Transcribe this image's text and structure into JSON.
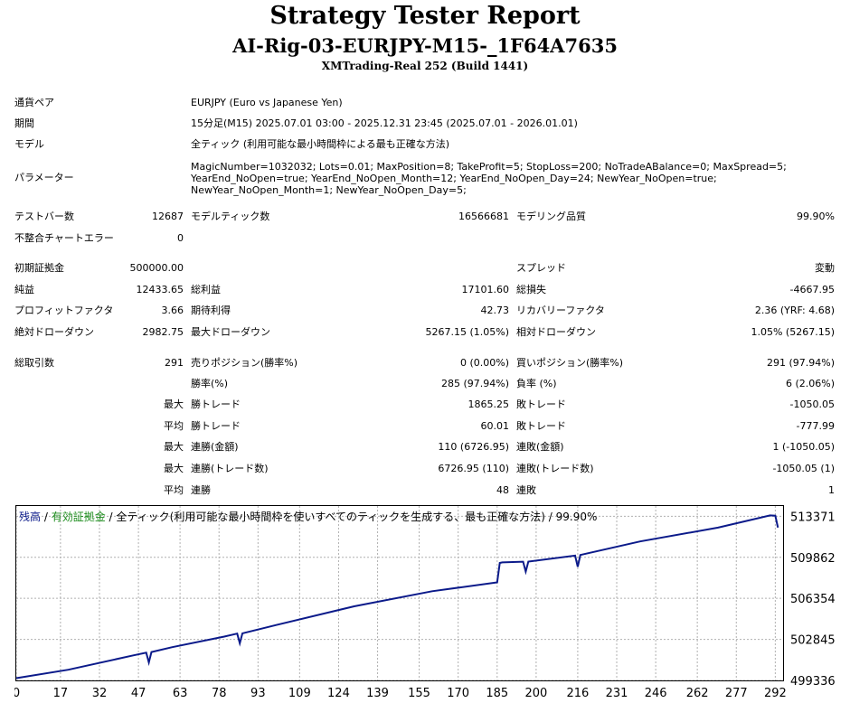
{
  "header": {
    "title": "Strategy Tester Report",
    "subtitle": "AI-Rig-03-EURJPY-M15-_1F64A7635",
    "server": "XMTrading-Real 252 (Build 1441)"
  },
  "settings": {
    "symbol_label": "通貨ペア",
    "symbol": "EURJPY (Euro vs Japanese Yen)",
    "period_label": "期間",
    "period": "15分足(M15) 2025.07.01 03:00 - 2025.12.31 23:45 (2025.07.01 - 2026.01.01)",
    "model_label": "モデル",
    "model": "全ティック (利用可能な最小時間枠による最も正確な方法)",
    "params_label": "パラメーター",
    "params": "MagicNumber=1032032; Lots=0.01; MaxPosition=8; TakeProfit=5; StopLoss=200; NoTradeABalance=0; MaxSpread=5; YearEnd_NoOpen=true; YearEnd_NoOpen_Month=12; YearEnd_NoOpen_Day=24; NewYear_NoOpen=true; NewYear_NoOpen_Month=1; NewYear_NoOpen_Day=5;"
  },
  "quality": {
    "bars_label": "テストバー数",
    "bars": "12687",
    "ticks_label": "モデルティック数",
    "ticks": "16566681",
    "model_quality_label": "モデリング品質",
    "model_quality": "99.90%",
    "mismatch_label": "不整合チャートエラー",
    "mismatch": "0"
  },
  "results": {
    "deposit_label": "初期証拠金",
    "deposit": "500000.00",
    "spread_label": "スプレッド",
    "spread": "変動",
    "net_profit_label": "純益",
    "net_profit": "12433.65",
    "gross_profit_label": "総利益",
    "gross_profit": "17101.60",
    "gross_loss_label": "総損失",
    "gross_loss": "-4667.95",
    "profit_factor_label": "プロフィットファクタ",
    "profit_factor": "3.66",
    "expected_payoff_label": "期待利得",
    "expected_payoff": "42.73",
    "recovery_factor_label": "リカバリーファクタ",
    "recovery_factor": "2.36 (YRF: 4.68)",
    "abs_dd_label": "絶対ドローダウン",
    "abs_dd": "2982.75",
    "max_dd_label": "最大ドローダウン",
    "max_dd": "5267.15 (1.05%)",
    "rel_dd_label": "相対ドローダウン",
    "rel_dd": "1.05% (5267.15)"
  },
  "trades": {
    "total_label": "総取引数",
    "total": "291",
    "short_label": "売りポジション(勝率%)",
    "short": "0 (0.00%)",
    "long_label": "買いポジション(勝率%)",
    "long": "291 (97.94%)",
    "win_rate_label": "勝率(%)",
    "win_rate": "285 (97.94%)",
    "loss_rate_label": "負率 (%)",
    "loss_rate": "6 (2.06%)",
    "max_prefix": "最大",
    "avg_prefix": "平均",
    "largest_win_label": "勝トレード",
    "largest_win": "1865.25",
    "largest_loss_label": "敗トレード",
    "largest_loss": "-1050.05",
    "avg_win_label": "勝トレード",
    "avg_win": "60.01",
    "avg_loss_label": "敗トレード",
    "avg_loss": "-777.99",
    "max_cons_wins_money_label": "連勝(金額)",
    "max_cons_wins_money": "110 (6726.95)",
    "max_cons_losses_money_label": "連敗(金額)",
    "max_cons_losses_money": "1 (-1050.05)",
    "max_cons_wins_count_label": "連勝(トレード数)",
    "max_cons_wins_count": "6726.95 (110)",
    "max_cons_losses_count_label": "連敗(トレード数)",
    "max_cons_losses_count": "-1050.05 (1)",
    "avg_cons_wins_label": "連勝",
    "avg_cons_wins": "48",
    "avg_cons_losses_label": "連敗",
    "avg_cons_losses": "1"
  },
  "legend": {
    "balance": "残高",
    "sep1": " / ",
    "equity": "有効証拠金",
    "rest": " / 全ティック(利用可能な最小時間枠を使いすべてのティックを生成する、最も正確な方法) / 99.90%"
  },
  "colors": {
    "balance_line": "#0b1a8a",
    "equity_legend": "#1c8c1c",
    "grid": "#b0b0b0",
    "frame": "#000000"
  },
  "chart_data": {
    "type": "line",
    "series": [
      {
        "name": "残高",
        "x": [
          0,
          20,
          45,
          50,
          51,
          52,
          60,
          80,
          85,
          86,
          87,
          100,
          130,
          160,
          185,
          186,
          187,
          195,
          196,
          197,
          215,
          216,
          217,
          240,
          270,
          290,
          292,
          293
        ],
        "y": [
          499530,
          500250,
          501480,
          501710,
          500870,
          501760,
          502180,
          503080,
          503340,
          502510,
          503360,
          504070,
          505670,
          506960,
          507720,
          509380,
          509430,
          509490,
          508640,
          509500,
          510010,
          509050,
          510060,
          511220,
          512400,
          513450,
          513420,
          512400
        ]
      }
    ],
    "xticks": [
      "0",
      "17",
      "32",
      "47",
      "63",
      "78",
      "93",
      "109",
      "124",
      "139",
      "155",
      "170",
      "185",
      "200",
      "216",
      "231",
      "246",
      "262",
      "277",
      "292"
    ],
    "yticks": [
      "513371",
      "509862",
      "506354",
      "502845",
      "499336"
    ],
    "xlim": [
      0,
      295
    ],
    "ylim": [
      499336,
      514250
    ],
    "grid": true
  }
}
